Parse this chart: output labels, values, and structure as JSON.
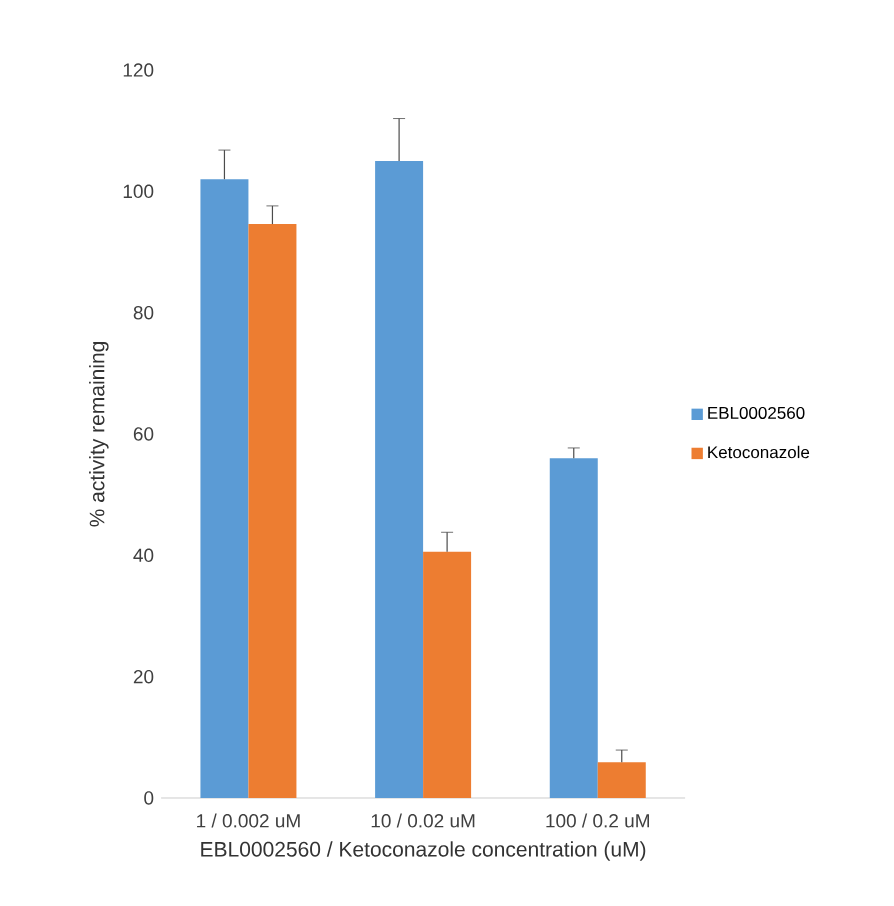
{
  "chart_data": {
    "type": "bar",
    "categories": [
      "1 / 0.002 uM",
      "10 / 0.02 uM",
      "100 / 0.2 uM"
    ],
    "series": [
      {
        "name": "EBL0002560",
        "color": "#5b9bd5",
        "values": [
          102,
          105,
          56
        ],
        "errors": [
          4.8,
          7,
          1.7
        ]
      },
      {
        "name": "Ketoconazole",
        "color": "#ed7d31",
        "values": [
          94.6,
          40.6,
          5.9
        ],
        "errors": [
          3,
          3.2,
          2
        ]
      }
    ],
    "xlabel": "EBL0002560 / Ketoconazole concentration (uM)",
    "ylabel": "% activity remaining",
    "ylim": [
      0,
      120
    ],
    "yticks": [
      0,
      20,
      40,
      60,
      80,
      100,
      120
    ],
    "grid": false,
    "legend": "right"
  }
}
